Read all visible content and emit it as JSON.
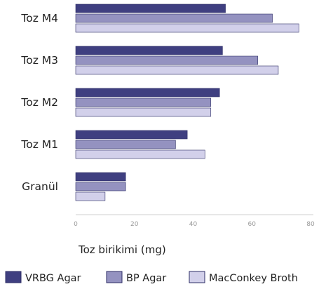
{
  "chart_data": {
    "type": "bar",
    "orientation": "horizontal",
    "title": "",
    "xlabel": "Toz birikimi (mg)",
    "ylabel": "",
    "xlim": [
      0,
      80
    ],
    "xticks": [
      0,
      20,
      40,
      60,
      80
    ],
    "grid": false,
    "legend_position": "bottom",
    "categories": [
      "Toz M4",
      "Toz M3",
      "Toz M2",
      "Toz M1",
      "Granül"
    ],
    "series": [
      {
        "name": "VRBG Agar",
        "color": "#3f3f80",
        "values": [
          51,
          50,
          49,
          38,
          17
        ]
      },
      {
        "name": "BP Agar",
        "color": "#9492c0",
        "values": [
          67,
          62,
          46,
          34,
          17
        ]
      },
      {
        "name": "MacConkey Broth",
        "color": "#d2d0ea",
        "values": [
          76,
          69,
          46,
          44,
          10
        ]
      }
    ]
  }
}
